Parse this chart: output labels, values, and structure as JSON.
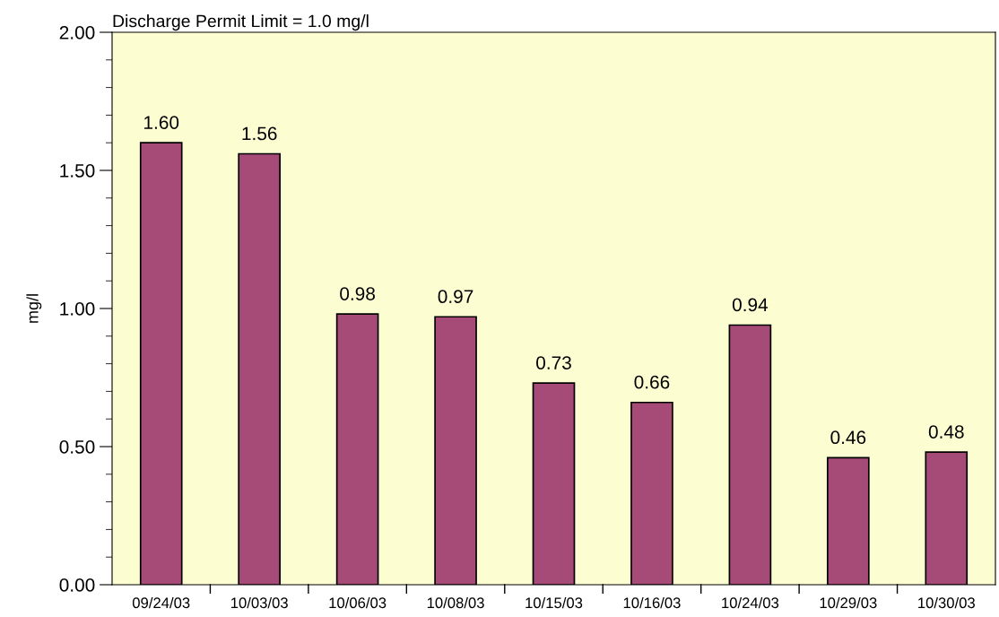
{
  "chart_data": {
    "type": "bar",
    "title": "Discharge Permit Limit = 1.0 mg/l",
    "ylabel": "mg/l",
    "categories": [
      "09/24/03",
      "10/03/03",
      "10/06/03",
      "10/08/03",
      "10/15/03",
      "10/16/03",
      "10/24/03",
      "10/29/03",
      "10/30/03"
    ],
    "values": [
      1.6,
      1.56,
      0.98,
      0.97,
      0.73,
      0.66,
      0.94,
      0.46,
      0.48
    ],
    "value_labels": [
      "1.60",
      "1.56",
      "0.98",
      "0.97",
      "0.73",
      "0.66",
      "0.94",
      "0.46",
      "0.48"
    ],
    "color": "#a64a78",
    "ylim": [
      0,
      2
    ],
    "yticks": [
      {
        "value": 0,
        "label": "0.00"
      },
      {
        "value": 0.1,
        "label": null
      },
      {
        "value": 0.2,
        "label": null
      },
      {
        "value": 0.3,
        "label": null
      },
      {
        "value": 0.4,
        "label": null
      },
      {
        "value": 0.5,
        "label": "0.50"
      },
      {
        "value": 0.6,
        "label": null
      },
      {
        "value": 0.7,
        "label": null
      },
      {
        "value": 0.8,
        "label": null
      },
      {
        "value": 0.9,
        "label": null
      },
      {
        "value": 1.0,
        "label": "1.00"
      },
      {
        "value": 1.1,
        "label": null
      },
      {
        "value": 1.2,
        "label": null
      },
      {
        "value": 1.3,
        "label": null
      },
      {
        "value": 1.4,
        "label": null
      },
      {
        "value": 1.5,
        "label": "1.50"
      },
      {
        "value": 1.6,
        "label": null
      },
      {
        "value": 1.7,
        "label": null
      },
      {
        "value": 1.8,
        "label": null
      },
      {
        "value": 1.9,
        "label": null
      },
      {
        "value": 2.0,
        "label": "2.00"
      }
    ],
    "grid": false,
    "legend": false
  }
}
